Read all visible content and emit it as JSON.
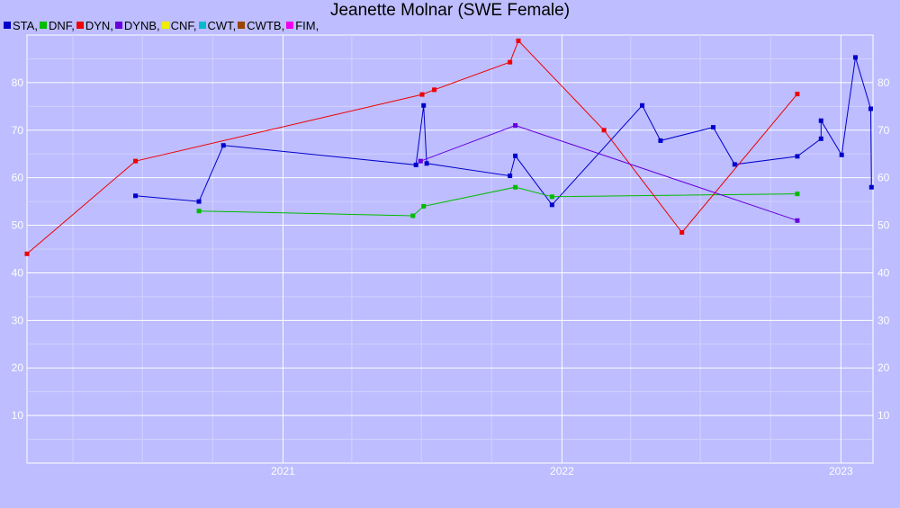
{
  "chart_data": {
    "type": "line",
    "title": "Jeanette Molnar (SWE Female)",
    "legend_position": "top-left",
    "legend": [
      {
        "label": "STA,",
        "color": "#0000cc"
      },
      {
        "label": "DNF,",
        "color": "#00bb00"
      },
      {
        "label": "DYN,",
        "color": "#ee0000"
      },
      {
        "label": "DYNB,",
        "color": "#6600dd"
      },
      {
        "label": "CNF,",
        "color": "#eeee00"
      },
      {
        "label": "CWT,",
        "color": "#00bbcc"
      },
      {
        "label": "CWTB,",
        "color": "#994400"
      },
      {
        "label": "FIM,",
        "color": "#ee00ee"
      }
    ],
    "xlim": [
      "2020-02-01",
      "2023-02-12"
    ],
    "ylim": [
      0,
      90
    ],
    "x_ticks": [
      {
        "date": "2021-01-01",
        "label": "2021"
      },
      {
        "date": "2022-01-01",
        "label": "2022"
      },
      {
        "date": "2023-01-01",
        "label": "2023"
      }
    ],
    "y_ticks": [
      10,
      20,
      30,
      40,
      50,
      60,
      70,
      80
    ],
    "grid": true,
    "series": [
      {
        "name": "STA",
        "color": "#0000cc",
        "points": [
          {
            "x": "2020-06-22",
            "y": 56.2
          },
          {
            "x": "2020-09-13",
            "y": 55.0
          },
          {
            "x": "2020-10-15",
            "y": 66.8
          },
          {
            "x": "2021-06-24",
            "y": 62.7
          },
          {
            "x": "2021-07-04",
            "y": 75.2
          },
          {
            "x": "2021-07-08",
            "y": 63.0
          },
          {
            "x": "2021-10-25",
            "y": 60.4
          },
          {
            "x": "2021-11-01",
            "y": 64.6
          },
          {
            "x": "2021-12-19",
            "y": 54.3
          },
          {
            "x": "2022-04-16",
            "y": 75.2
          },
          {
            "x": "2022-05-10",
            "y": 67.8
          },
          {
            "x": "2022-07-18",
            "y": 70.6
          },
          {
            "x": "2022-08-15",
            "y": 62.8
          },
          {
            "x": "2022-11-05",
            "y": 64.5
          },
          {
            "x": "2022-12-06",
            "y": 68.2
          },
          {
            "x": "2022-12-06",
            "y": 72.0
          },
          {
            "x": "2023-01-02",
            "y": 64.8
          },
          {
            "x": "2023-01-20",
            "y": 85.3
          },
          {
            "x": "2023-02-09",
            "y": 74.5
          },
          {
            "x": "2023-02-10",
            "y": 58.0
          }
        ]
      },
      {
        "name": "DNF",
        "color": "#00bb00",
        "points": [
          {
            "x": "2020-09-13",
            "y": 53.0
          },
          {
            "x": "2021-06-20",
            "y": 52.0
          },
          {
            "x": "2021-07-04",
            "y": 54.0
          },
          {
            "x": "2021-11-01",
            "y": 58.0
          },
          {
            "x": "2021-12-19",
            "y": 56.0
          },
          {
            "x": "2022-11-05",
            "y": 56.6
          }
        ]
      },
      {
        "name": "DYN",
        "color": "#ee0000",
        "points": [
          {
            "x": "2020-02-01",
            "y": 44.0
          },
          {
            "x": "2020-06-22",
            "y": 63.5
          },
          {
            "x": "2021-07-02",
            "y": 77.5
          },
          {
            "x": "2021-07-18",
            "y": 78.5
          },
          {
            "x": "2021-10-25",
            "y": 84.3
          },
          {
            "x": "2021-11-05",
            "y": 88.8
          },
          {
            "x": "2022-02-25",
            "y": 70.0
          },
          {
            "x": "2022-06-07",
            "y": 48.5
          },
          {
            "x": "2022-11-05",
            "y": 77.6
          }
        ]
      },
      {
        "name": "DYNB",
        "color": "#6600dd",
        "points": [
          {
            "x": "2021-06-30",
            "y": 63.5
          },
          {
            "x": "2021-11-01",
            "y": 71.0
          },
          {
            "x": "2022-11-05",
            "y": 51.0
          }
        ]
      }
    ]
  }
}
